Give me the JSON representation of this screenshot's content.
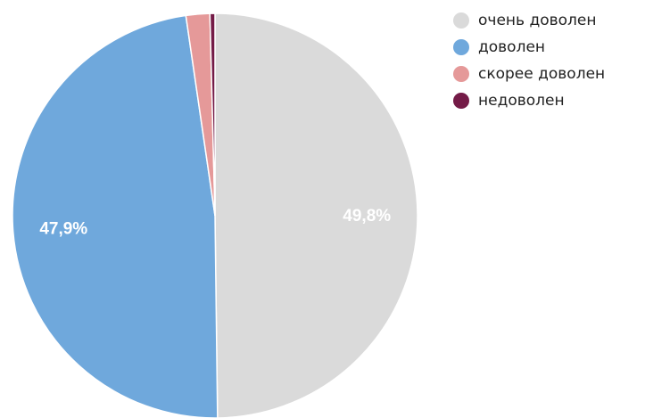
{
  "chart_data": {
    "type": "pie",
    "series": [
      {
        "name": "очень доволен",
        "value": 49.8,
        "label": "49,8%",
        "color": "#dadada"
      },
      {
        "name": "доволен",
        "value": 47.9,
        "label": "47,9%",
        "color": "#6fa8dc"
      },
      {
        "name": "скорее доволен",
        "value": 1.9,
        "label": "",
        "color": "#e59999"
      },
      {
        "name": "недоволен",
        "value": 0.4,
        "label": "",
        "color": "#741b47"
      }
    ],
    "legend_position": "top-right"
  }
}
